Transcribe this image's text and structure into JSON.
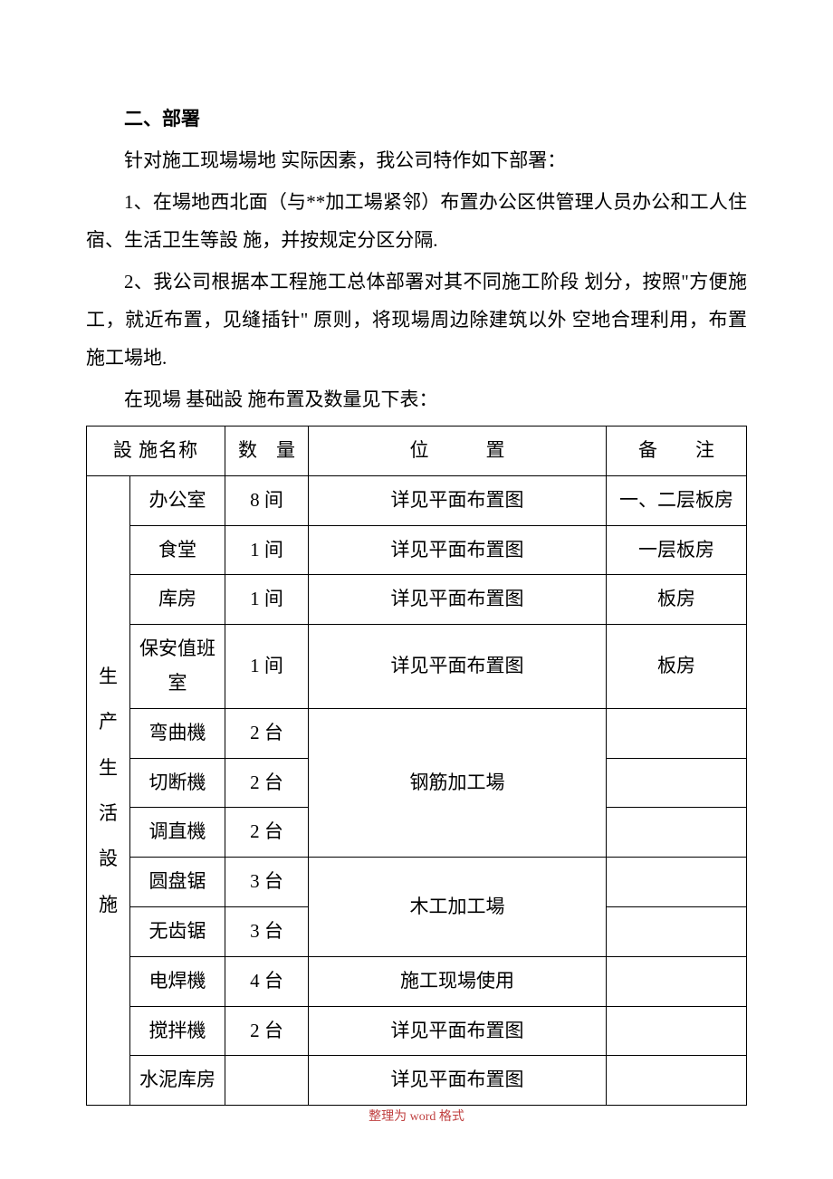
{
  "heading": "二、部署",
  "p1": "针对施工现場場地 实际因素，我公司特作如下部署：",
  "p2": "1、在場地西北面（与**加工場紧邻）布置办公区供管理人员办公和工人住宿、生活卫生等設 施，并按规定分区分隔.",
  "p3": "2、我公司根据本工程施工总体部署对其不同施工阶段 划分，按照\"方便施工，就近布置，见缝插针\"  原则，将现場周边除建筑以外 空地合理利用，布置施工場地.",
  "p4": "在现場 基础設 施布置及数量见下表：",
  "table": {
    "headers": {
      "col1": "設 施名称",
      "col2": "数　量",
      "col3": "位　　　置",
      "col4": "备　　注"
    },
    "vertical_label": "生产生活設施",
    "rows": [
      {
        "name": "办公室",
        "qty": "8 间",
        "loc": "详见平面布置图",
        "note": "一、二层板房"
      },
      {
        "name": "食堂",
        "qty": "1 间",
        "loc": "详见平面布置图",
        "note": "一层板房"
      },
      {
        "name": "库房",
        "qty": "1 间",
        "loc": "详见平面布置图",
        "note": "板房"
      },
      {
        "name": "保安值班室",
        "qty": "1 间",
        "loc": "详见平面布置图",
        "note": "板房"
      },
      {
        "name": "弯曲機",
        "qty": "2 台",
        "loc": "钢筋加工場",
        "note": ""
      },
      {
        "name": "切断機",
        "qty": "2 台",
        "loc": "",
        "note": ""
      },
      {
        "name": "调直機",
        "qty": "2 台",
        "loc": "",
        "note": ""
      },
      {
        "name": "圆盘锯",
        "qty": "3 台",
        "loc": "木工加工場",
        "note": ""
      },
      {
        "name": "无齿锯",
        "qty": "3 台",
        "loc": "",
        "note": ""
      },
      {
        "name": "电焊機",
        "qty": "4 台",
        "loc": "施工现場使用",
        "note": ""
      },
      {
        "name": "搅拌機",
        "qty": "2 台",
        "loc": "详见平面布置图",
        "note": ""
      },
      {
        "name": "水泥库房",
        "qty": "",
        "loc": "详见平面布置图",
        "note": ""
      }
    ]
  },
  "footer": "整理为 word 格式"
}
